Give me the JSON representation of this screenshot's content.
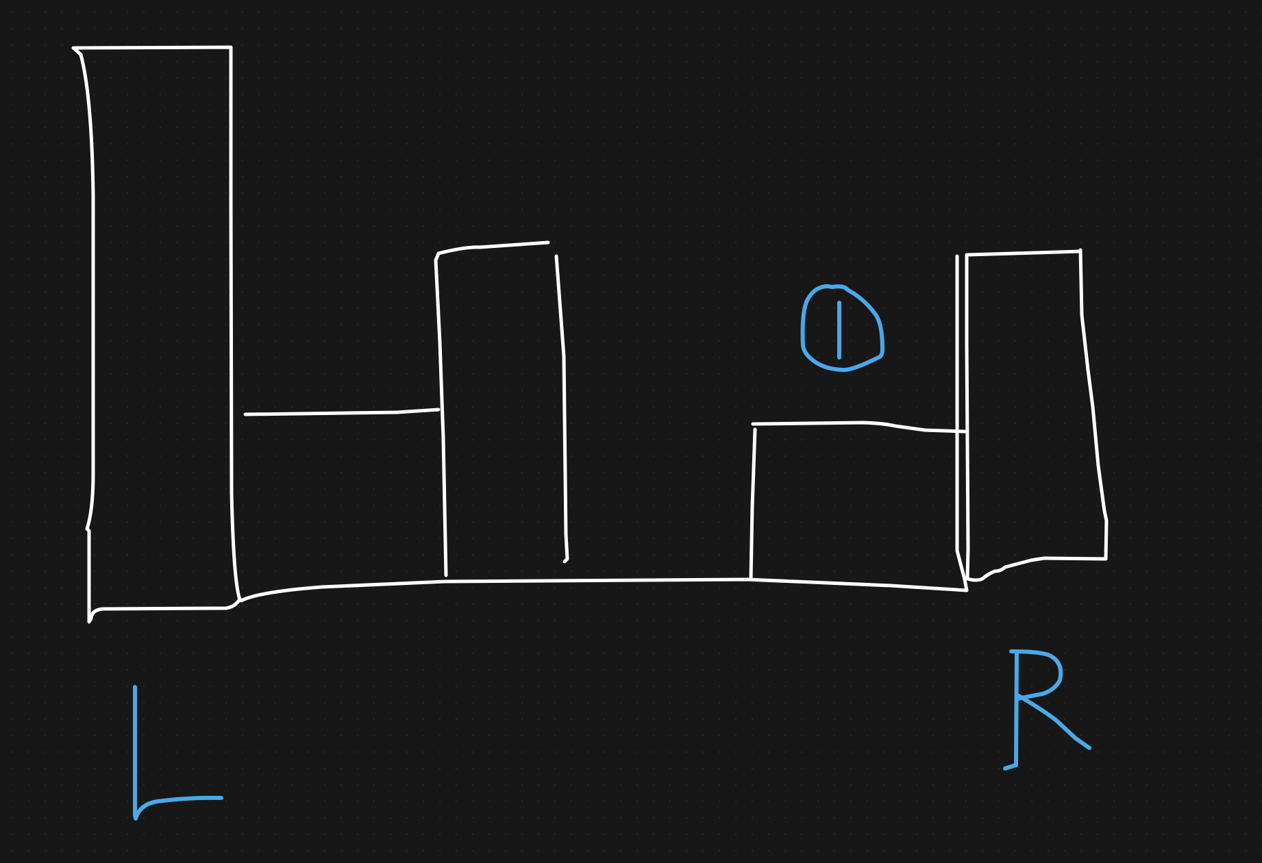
{
  "canvas": {
    "background": "#171717",
    "dot_grid": true
  },
  "colors": {
    "structure_stroke": "#ffffff",
    "annotation_stroke": "#4aa8e8"
  },
  "annotations": {
    "left_pointer": "L",
    "right_pointer": "R",
    "trapped_value": "1"
  }
}
